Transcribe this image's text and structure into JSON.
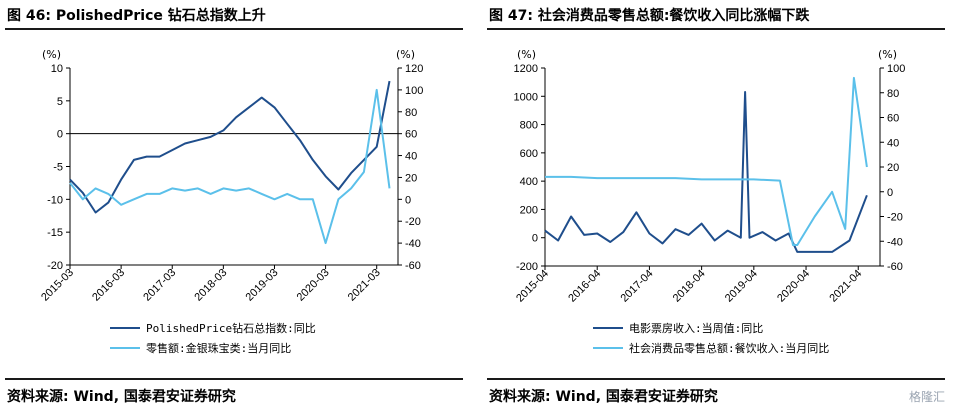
{
  "panels": [
    {
      "title": "图 46: PolishedPrice 钻石总指数上升",
      "source": "资料来源: Wind, 国泰君安证券研究",
      "chart_data": {
        "type": "line",
        "left_axis": {
          "unit": "(%)",
          "ticks": [
            10,
            5,
            0,
            -5,
            -10,
            -15,
            -20
          ],
          "ylim": [
            -20,
            10
          ]
        },
        "right_axis": {
          "unit": "(%)",
          "ticks": [
            120,
            100,
            80,
            60,
            40,
            20,
            0,
            -20,
            -40,
            -60
          ],
          "ylim": [
            -60,
            120
          ]
        },
        "x_ticks": [
          "2015-03",
          "2016-03",
          "2017-03",
          "2018-03",
          "2019-03",
          "2020-03",
          "2021-03"
        ],
        "zero_line": true,
        "series": [
          {
            "name": "PolishedPrice钻石总指数:同比",
            "axis": "left",
            "color": "#1f4e8c",
            "x": [
              "2015-03",
              "2015-06",
              "2015-09",
              "2015-12",
              "2016-03",
              "2016-06",
              "2016-09",
              "2016-12",
              "2017-03",
              "2017-06",
              "2017-09",
              "2017-12",
              "2018-03",
              "2018-06",
              "2018-09",
              "2018-12",
              "2019-03",
              "2019-06",
              "2019-09",
              "2019-12",
              "2020-03",
              "2020-06",
              "2020-09",
              "2020-12",
              "2021-03",
              "2021-06"
            ],
            "values": [
              -7,
              -9,
              -12,
              -10.5,
              -7,
              -4,
              -3.5,
              -3.5,
              -2.5,
              -1.5,
              -1,
              -0.5,
              0.5,
              2.5,
              4,
              5.5,
              4,
              1.5,
              -1,
              -4,
              -6.5,
              -8.5,
              -6,
              -4,
              -2,
              8
            ]
          },
          {
            "name": "零售额:金银珠宝类:当月同比",
            "axis": "right",
            "color": "#5bc0ea",
            "x": [
              "2015-03",
              "2015-06",
              "2015-09",
              "2015-12",
              "2016-03",
              "2016-06",
              "2016-09",
              "2016-12",
              "2017-03",
              "2017-06",
              "2017-09",
              "2017-12",
              "2018-03",
              "2018-06",
              "2018-09",
              "2018-12",
              "2019-03",
              "2019-06",
              "2019-09",
              "2019-12",
              "2020-03",
              "2020-06",
              "2020-09",
              "2020-12",
              "2021-03",
              "2021-06"
            ],
            "values": [
              15,
              0,
              10,
              5,
              -5,
              0,
              5,
              5,
              10,
              8,
              10,
              5,
              10,
              8,
              10,
              5,
              0,
              5,
              0,
              0,
              -40,
              0,
              10,
              25,
              100,
              10
            ]
          }
        ]
      }
    },
    {
      "title": "图 47: 社会消费品零售总额:餐饮收入同比涨幅下跌",
      "source": "资料来源: Wind, 国泰君安证券研究",
      "chart_data": {
        "type": "line",
        "left_axis": {
          "unit": "(%)",
          "ticks": [
            1200,
            1000,
            800,
            600,
            400,
            200,
            0,
            -200
          ],
          "ylim": [
            -200,
            1200
          ]
        },
        "right_axis": {
          "unit": "(%)",
          "ticks": [
            100,
            80,
            60,
            40,
            20,
            0,
            -20,
            -40,
            -60
          ],
          "ylim": [
            -60,
            100
          ]
        },
        "x_ticks": [
          "2015-04",
          "2016-04",
          "2017-04",
          "2018-04",
          "2019-04",
          "2020-04",
          "2021-04"
        ],
        "zero_line": false,
        "series": [
          {
            "name": "电影票房收入:当周值:同比",
            "axis": "left",
            "color": "#1f4e8c",
            "x": [
              "2015-04",
              "2015-07",
              "2015-10",
              "2016-01",
              "2016-04",
              "2016-07",
              "2016-10",
              "2017-01",
              "2017-04",
              "2017-07",
              "2017-10",
              "2018-01",
              "2018-04",
              "2018-07",
              "2018-10",
              "2019-01",
              "2019-02",
              "2019-03",
              "2019-06",
              "2019-09",
              "2019-12",
              "2020-02",
              "2020-06",
              "2020-10",
              "2021-02",
              "2021-06"
            ],
            "values": [
              50,
              -20,
              150,
              20,
              30,
              -30,
              40,
              180,
              30,
              -40,
              60,
              20,
              100,
              -20,
              50,
              0,
              1030,
              0,
              40,
              -20,
              30,
              -100,
              -100,
              -100,
              -20,
              300
            ]
          },
          {
            "name": "社会消费品零售总额:餐饮收入:当月同比",
            "axis": "right",
            "color": "#5bc0ea",
            "x": [
              "2015-04",
              "2015-10",
              "2016-04",
              "2016-10",
              "2017-04",
              "2017-10",
              "2018-04",
              "2018-10",
              "2019-04",
              "2019-10",
              "2020-01",
              "2020-02",
              "2020-06",
              "2020-10",
              "2021-01",
              "2021-03",
              "2021-06"
            ],
            "values": [
              12,
              12,
              11,
              11,
              11,
              11,
              10,
              10,
              10,
              9,
              -43,
              -43,
              -20,
              0,
              -30,
              92,
              20
            ]
          }
        ]
      }
    }
  ],
  "watermark": "格隆汇"
}
